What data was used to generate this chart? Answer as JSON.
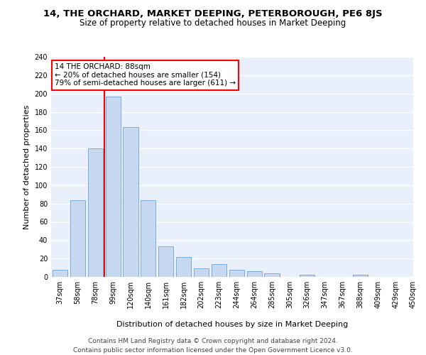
{
  "title": "14, THE ORCHARD, MARKET DEEPING, PETERBOROUGH, PE6 8JS",
  "subtitle": "Size of property relative to detached houses in Market Deeping",
  "xlabel": "Distribution of detached houses by size in Market Deeping",
  "ylabel": "Number of detached properties",
  "footer_line1": "Contains HM Land Registry data © Crown copyright and database right 2024.",
  "footer_line2": "Contains public sector information licensed under the Open Government Licence v3.0.",
  "bin_labels": [
    "37sqm",
    "58sqm",
    "78sqm",
    "99sqm",
    "120sqm",
    "140sqm",
    "161sqm",
    "182sqm",
    "202sqm",
    "223sqm",
    "244sqm",
    "264sqm",
    "285sqm",
    "305sqm",
    "326sqm",
    "347sqm",
    "367sqm",
    "388sqm",
    "409sqm",
    "429sqm",
    "450sqm"
  ],
  "bar_values": [
    8,
    84,
    140,
    197,
    163,
    84,
    33,
    22,
    9,
    14,
    8,
    6,
    4,
    0,
    2,
    0,
    0,
    2,
    0,
    0
  ],
  "bar_color": "#c6d9f1",
  "bar_edge_color": "#7aabdc",
  "marker_color": "red",
  "annotation_text": "14 THE ORCHARD: 88sqm\n← 20% of detached houses are smaller (154)\n79% of semi-detached houses are larger (611) →",
  "annotation_box_color": "white",
  "annotation_box_edge": "red",
  "ylim": [
    0,
    240
  ],
  "yticks": [
    0,
    20,
    40,
    60,
    80,
    100,
    120,
    140,
    160,
    180,
    200,
    220,
    240
  ],
  "background_color": "#eaf0fb",
  "grid_color": "white",
  "title_fontsize": 9.5,
  "subtitle_fontsize": 8.5,
  "axis_fontsize": 8,
  "tick_fontsize": 7,
  "footer_fontsize": 6.5,
  "annotation_fontsize": 7.5
}
